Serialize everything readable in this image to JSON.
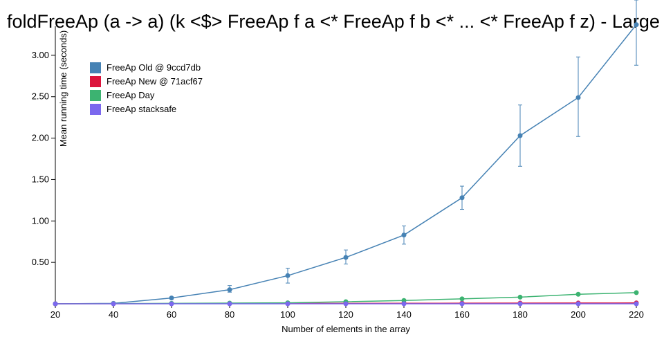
{
  "chart_data": {
    "type": "line",
    "title": "foldFreeAp (a -> a) (k <$> FreeAp f a <* FreeAp f b <* ... <* FreeAp f z) - Large",
    "xlabel": "Number of elements in the array",
    "ylabel": "Mean running time (seconds)",
    "x": [
      20,
      40,
      60,
      80,
      100,
      120,
      140,
      160,
      180,
      200,
      220
    ],
    "xlim": [
      20,
      220
    ],
    "ylim": [
      0,
      3.35
    ],
    "xticks": [
      "20",
      "40",
      "60",
      "80",
      "100",
      "120",
      "140",
      "160",
      "180",
      "200",
      "220"
    ],
    "yticks": [
      "0.50",
      "1.00",
      "1.50",
      "2.00",
      "2.50",
      "3.00"
    ],
    "legend_position": "top-left",
    "series": [
      {
        "name": "FreeAp Old @ 9ccd7db",
        "color": "#4682b4",
        "values": [
          0.0,
          0.005,
          0.07,
          0.17,
          0.34,
          0.56,
          0.83,
          1.28,
          2.03,
          2.49,
          3.37
        ],
        "error_low": [
          0.0,
          0.0,
          0.06,
          0.14,
          0.25,
          0.48,
          0.72,
          1.14,
          1.66,
          2.02,
          2.88
        ],
        "error_high": [
          0.0,
          0.01,
          0.08,
          0.22,
          0.43,
          0.65,
          0.94,
          1.42,
          2.4,
          2.98,
          3.72
        ]
      },
      {
        "name": "FreeAp New @ 71acf67",
        "color": "#dc143c",
        "values": [
          0.0,
          0.001,
          0.002,
          0.003,
          0.004,
          0.005,
          0.006,
          0.007,
          0.008,
          0.009,
          0.01
        ]
      },
      {
        "name": "FreeAp Day",
        "color": "#3cb371",
        "values": [
          0.0,
          0.002,
          0.005,
          0.008,
          0.012,
          0.025,
          0.04,
          0.06,
          0.08,
          0.115,
          0.135
        ]
      },
      {
        "name": "FreeAp stacksafe",
        "color": "#7b68ee",
        "values": [
          0.0,
          0.0,
          0.0,
          0.0,
          0.0,
          0.0,
          0.0,
          0.0,
          0.0,
          0.0,
          0.0
        ]
      }
    ]
  }
}
